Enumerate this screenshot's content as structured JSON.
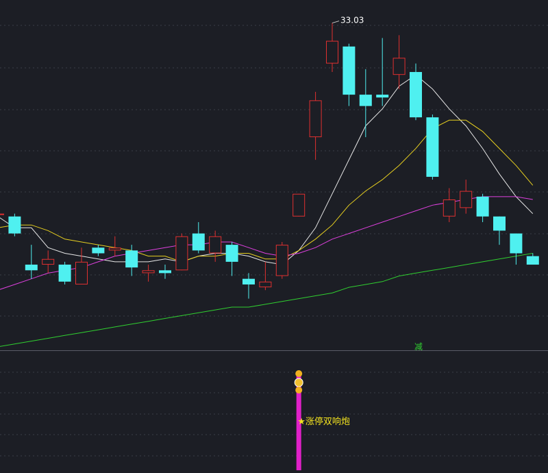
{
  "colors": {
    "background": "#1c1e25",
    "up": "#e03030",
    "down": "#4ff0f0",
    "ma_white": "#e8e8e8",
    "ma_yellow": "#e8d020",
    "ma_magenta": "#e040e0",
    "ma_green": "#30d030",
    "signal_bar": "#e020c8",
    "signal_text": "#f0e020",
    "reduce_text": "#30d030",
    "peak_label": "#ffffff",
    "grid": "#3a3d48"
  },
  "labels": {
    "peak_price": "33.03",
    "reduce_marker": "减",
    "signal_text": "★涨停双响炮",
    "money_icon": "money-bag-icon"
  },
  "chart_data": [
    {
      "type": "candlestick",
      "title": "",
      "price_range": [
        21.5,
        33.6
      ],
      "candles": [
        {
          "o": 26.3,
          "c": 26.3,
          "h": 26.4,
          "l": 25.5
        },
        {
          "o": 26.2,
          "c": 25.6,
          "h": 26.3,
          "l": 25.5
        },
        {
          "o": 24.5,
          "c": 24.3,
          "h": 25.2,
          "l": 24.0
        },
        {
          "o": 24.5,
          "c": 24.7,
          "h": 25.0,
          "l": 24.2
        },
        {
          "o": 24.5,
          "c": 23.9,
          "h": 24.6,
          "l": 23.8
        },
        {
          "o": 23.8,
          "c": 24.6,
          "h": 25.1,
          "l": 23.8
        },
        {
          "o": 25.1,
          "c": 24.9,
          "h": 25.2,
          "l": 24.8
        },
        {
          "o": 25.0,
          "c": 25.1,
          "h": 25.5,
          "l": 24.8
        },
        {
          "o": 25.0,
          "c": 24.4,
          "h": 25.2,
          "l": 24.1
        },
        {
          "o": 24.2,
          "c": 24.3,
          "h": 24.5,
          "l": 23.9
        },
        {
          "o": 24.3,
          "c": 24.2,
          "h": 24.5,
          "l": 24.0
        },
        {
          "o": 24.3,
          "c": 25.5,
          "h": 25.6,
          "l": 24.3
        },
        {
          "o": 25.6,
          "c": 25.0,
          "h": 26.0,
          "l": 24.9
        },
        {
          "o": 24.9,
          "c": 25.5,
          "h": 25.7,
          "l": 24.6
        },
        {
          "o": 25.2,
          "c": 24.6,
          "h": 25.3,
          "l": 24.1
        },
        {
          "o": 24.0,
          "c": 23.8,
          "h": 24.2,
          "l": 23.3
        },
        {
          "o": 23.7,
          "c": 23.9,
          "h": 24.6,
          "l": 23.6
        },
        {
          "o": 24.1,
          "c": 25.2,
          "h": 25.3,
          "l": 24.0
        },
        {
          "o": 26.2,
          "c": 27.0,
          "h": 27.0,
          "l": 26.2
        },
        {
          "o": 29.0,
          "c": 30.3,
          "h": 30.6,
          "l": 28.2
        },
        {
          "o": 31.6,
          "c": 32.4,
          "h": 33.03,
          "l": 31.3
        },
        {
          "o": 32.2,
          "c": 30.5,
          "h": 32.3,
          "l": 30.1
        },
        {
          "o": 30.5,
          "c": 30.1,
          "h": 31.4,
          "l": 29.0
        },
        {
          "o": 30.5,
          "c": 30.4,
          "h": 32.5,
          "l": 30.1
        },
        {
          "o": 31.2,
          "c": 31.8,
          "h": 32.6,
          "l": 30.7
        },
        {
          "o": 31.3,
          "c": 29.7,
          "h": 31.6,
          "l": 29.6
        },
        {
          "o": 29.7,
          "c": 27.6,
          "h": 29.8,
          "l": 27.5
        },
        {
          "o": 26.2,
          "c": 26.8,
          "h": 27.2,
          "l": 26.0
        },
        {
          "o": 26.5,
          "c": 27.1,
          "h": 27.5,
          "l": 26.3
        },
        {
          "o": 26.9,
          "c": 26.2,
          "h": 27.0,
          "l": 26.0
        },
        {
          "o": 26.2,
          "c": 25.7,
          "h": 26.2,
          "l": 25.2
        },
        {
          "o": 25.6,
          "c": 24.9,
          "h": 25.6,
          "l": 24.5
        },
        {
          "o": 24.8,
          "c": 24.5,
          "h": 24.9,
          "l": 24.5
        }
      ],
      "moving_averages": [
        {
          "color_key": "ma_white",
          "values": [
            26.2,
            25.8,
            25.8,
            25.1,
            24.9,
            24.8,
            24.7,
            24.6,
            24.6,
            24.6,
            24.7,
            24.6,
            24.8,
            24.9,
            24.9,
            24.8,
            24.6,
            24.5,
            25.0,
            25.8,
            27.0,
            28.2,
            29.4,
            30.0,
            30.8,
            31.2,
            30.7,
            30.0,
            29.4,
            28.6,
            27.7,
            26.9,
            26.3
          ]
        },
        {
          "color_key": "ma_yellow",
          "values": [
            25.8,
            25.9,
            25.9,
            25.7,
            25.4,
            25.3,
            25.2,
            25.1,
            25.0,
            24.8,
            24.8,
            24.6,
            24.8,
            24.8,
            24.9,
            24.9,
            24.7,
            24.7,
            25.0,
            25.4,
            25.9,
            26.6,
            27.1,
            27.5,
            28.0,
            28.6,
            29.3,
            29.6,
            29.6,
            29.2,
            28.6,
            28.0,
            27.3
          ]
        },
        {
          "color_key": "ma_magenta",
          "values": [
            23.6,
            23.8,
            24.0,
            24.2,
            24.3,
            24.4,
            24.6,
            24.8,
            24.9,
            25.0,
            25.1,
            25.2,
            25.2,
            25.3,
            25.3,
            25.1,
            24.9,
            24.8,
            24.9,
            25.1,
            25.4,
            25.6,
            25.8,
            26.0,
            26.2,
            26.4,
            26.6,
            26.7,
            26.8,
            26.9,
            26.9,
            26.9,
            26.8
          ]
        },
        {
          "color_key": "ma_green",
          "values": [
            21.6,
            21.7,
            21.8,
            21.9,
            22.0,
            22.1,
            22.2,
            22.3,
            22.4,
            22.5,
            22.6,
            22.7,
            22.8,
            22.9,
            23.0,
            23.0,
            23.1,
            23.2,
            23.3,
            23.4,
            23.5,
            23.7,
            23.8,
            23.9,
            24.1,
            24.2,
            24.3,
            24.4,
            24.5,
            24.6,
            24.7,
            24.8,
            24.9
          ]
        }
      ],
      "peak_label": {
        "candle_index": 20,
        "value": 33.03
      },
      "markers": [
        {
          "candle_index": 25,
          "text_key": "reduce_marker"
        }
      ]
    },
    {
      "type": "bar",
      "title": "",
      "signals": [
        {
          "candle_index": 18,
          "value": 1
        }
      ]
    }
  ]
}
